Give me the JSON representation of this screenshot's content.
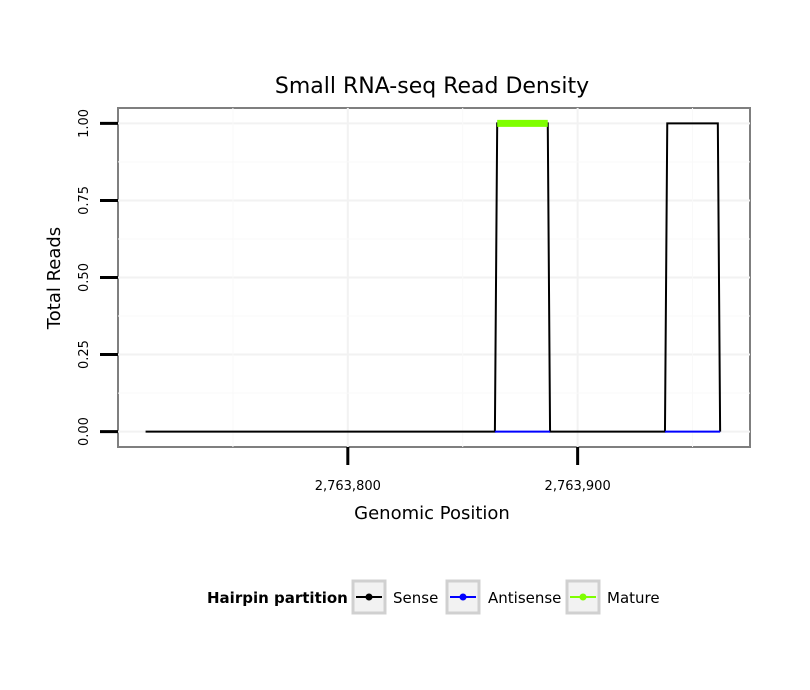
{
  "chart_data": {
    "type": "line",
    "title": "Small RNA-seq Read Density",
    "xlabel": "Genomic Position",
    "ylabel": "Total Reads",
    "xlim": [
      2763700,
      2763975
    ],
    "ylim": [
      -0.05,
      1.05
    ],
    "x_ticks": [
      {
        "value": 2763800,
        "label": "2,763,800"
      },
      {
        "value": 2763900,
        "label": "2,763,900"
      }
    ],
    "y_ticks": [
      {
        "value": 0,
        "label": "0.00"
      },
      {
        "value": 0.25,
        "label": "0.25"
      },
      {
        "value": 0.5,
        "label": "0.50"
      },
      {
        "value": 0.75,
        "label": "0.75"
      },
      {
        "value": 1.0,
        "label": "1.00"
      }
    ],
    "grid": true,
    "legend": {
      "title": "Hairpin partition",
      "position": "bottom"
    },
    "series": [
      {
        "name": "Sense",
        "color": "#000000",
        "x": [
          2763712,
          2763864,
          2763865,
          2763887,
          2763888,
          2763938,
          2763939,
          2763961,
          2763962
        ],
        "y": [
          0,
          0,
          1,
          1,
          0,
          0,
          1,
          1,
          0
        ]
      },
      {
        "name": "Antisense",
        "color": "#0000ff",
        "x": [
          2763864,
          2763888,
          2763938,
          2763962
        ],
        "y": [
          0,
          0,
          0,
          0
        ],
        "segments": [
          [
            0,
            1
          ],
          [
            2,
            3
          ]
        ]
      },
      {
        "name": "Mature",
        "color": "#7fff00",
        "x": [
          2763865,
          2763887
        ],
        "y": [
          1,
          1
        ]
      }
    ]
  }
}
